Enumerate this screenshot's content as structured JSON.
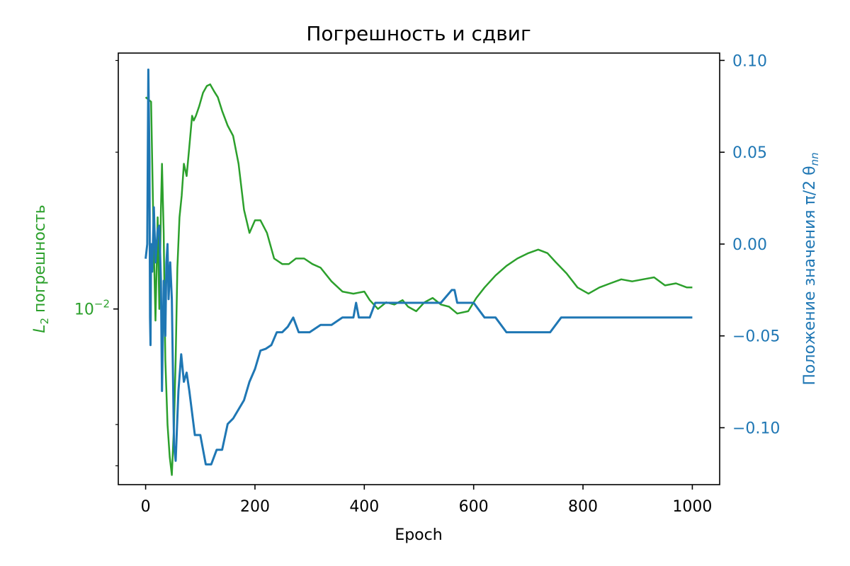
{
  "chart_data": {
    "type": "line",
    "title": "Погрешность и сдвиг",
    "xlabel": "Epoch",
    "xlim": [
      -50,
      1050
    ],
    "x_ticks": [
      0,
      200,
      400,
      600,
      800,
      1000
    ],
    "x_tick_labels": [
      "0",
      "200",
      "400",
      "600",
      "800",
      "1000"
    ],
    "grid": false,
    "left_axis": {
      "label_main": "L",
      "label_sub": "2",
      "label_rest": " погрешность",
      "scale": "log",
      "ylim": [
        0.0046,
        0.031
      ],
      "major_tick": 0.01,
      "major_tick_label": "10",
      "major_tick_exp": "−2",
      "minor_ticks": [
        0.005,
        0.006,
        0.02,
        0.03
      ],
      "color": "#2ca02c"
    },
    "right_axis": {
      "label_main": "Положение значения π/2 θ",
      "label_sub": "nn",
      "scale": "linear",
      "ylim": [
        -0.131,
        0.104
      ],
      "ticks": [
        0.1,
        0.05,
        0.0,
        -0.05,
        -0.1
      ],
      "tick_labels": [
        "0.10",
        "0.05",
        "0.00",
        "−0.05",
        "−0.10"
      ],
      "color": "#1f77b4"
    },
    "series": [
      {
        "axis": "left",
        "color": "#2ca02c",
        "x": [
          0,
          10,
          15,
          18,
          22,
          25,
          28,
          30,
          33,
          36,
          40,
          44,
          48,
          52,
          55,
          58,
          62,
          66,
          70,
          75,
          80,
          85,
          88,
          92,
          98,
          105,
          112,
          118,
          125,
          132,
          140,
          150,
          160,
          170,
          180,
          190,
          200,
          210,
          222,
          235,
          250,
          262,
          275,
          290,
          305,
          320,
          340,
          360,
          380,
          400,
          410,
          425,
          440,
          455,
          470,
          480,
          495,
          510,
          525,
          540,
          555,
          570,
          590,
          605,
          620,
          640,
          660,
          680,
          700,
          718,
          735,
          750,
          770,
          790,
          810,
          830,
          850,
          870,
          890,
          910,
          930,
          950,
          970,
          990,
          1000
        ],
        "y": [
          0.0255,
          0.025,
          0.013,
          0.0095,
          0.015,
          0.01,
          0.0155,
          0.019,
          0.014,
          0.008,
          0.006,
          0.0052,
          0.0048,
          0.006,
          0.008,
          0.012,
          0.015,
          0.0165,
          0.019,
          0.018,
          0.0205,
          0.0235,
          0.023,
          0.0235,
          0.0245,
          0.026,
          0.0268,
          0.027,
          0.0262,
          0.0255,
          0.024,
          0.0225,
          0.0215,
          0.019,
          0.0155,
          0.014,
          0.0148,
          0.0148,
          0.014,
          0.0125,
          0.0122,
          0.0122,
          0.0125,
          0.0125,
          0.0122,
          0.012,
          0.0113,
          0.0108,
          0.0107,
          0.0108,
          0.0104,
          0.01,
          0.0103,
          0.0102,
          0.0104,
          0.0101,
          0.0099,
          0.0103,
          0.0105,
          0.0102,
          0.0101,
          0.0098,
          0.0099,
          0.0105,
          0.011,
          0.0116,
          0.0121,
          0.0125,
          0.0128,
          0.013,
          0.0128,
          0.0123,
          0.0117,
          0.011,
          0.0107,
          0.011,
          0.0112,
          0.0114,
          0.0113,
          0.0114,
          0.0115,
          0.0111,
          0.0112,
          0.011,
          0.011
        ]
      },
      {
        "axis": "right",
        "color": "#1f77b4",
        "x": [
          0,
          3,
          5,
          6,
          7,
          8,
          9,
          10,
          12,
          15,
          18,
          22,
          25,
          28,
          30,
          31,
          33,
          36,
          38,
          40,
          42,
          45,
          48,
          52,
          55,
          60,
          65,
          70,
          75,
          80,
          90,
          100,
          110,
          120,
          130,
          140,
          150,
          160,
          170,
          180,
          190,
          200,
          210,
          220,
          230,
          240,
          250,
          260,
          270,
          280,
          300,
          320,
          340,
          360,
          380,
          385,
          390,
          400,
          410,
          420,
          450,
          480,
          500,
          520,
          540,
          560,
          565,
          570,
          580,
          600,
          620,
          640,
          660,
          680,
          700,
          720,
          740,
          760,
          780,
          800,
          850,
          900,
          950,
          1000
        ],
        "y": [
          -0.008,
          0.0,
          0.095,
          0.07,
          0.045,
          -0.04,
          -0.055,
          0.0,
          -0.015,
          0.02,
          -0.01,
          0.008,
          0.01,
          -0.02,
          -0.08,
          -0.06,
          -0.02,
          -0.05,
          -0.01,
          0.0,
          -0.03,
          -0.01,
          -0.03,
          -0.11,
          -0.118,
          -0.08,
          -0.06,
          -0.075,
          -0.07,
          -0.08,
          -0.104,
          -0.104,
          -0.12,
          -0.12,
          -0.112,
          -0.112,
          -0.098,
          -0.095,
          -0.09,
          -0.085,
          -0.075,
          -0.068,
          -0.058,
          -0.057,
          -0.055,
          -0.048,
          -0.048,
          -0.045,
          -0.04,
          -0.048,
          -0.048,
          -0.044,
          -0.044,
          -0.04,
          -0.04,
          -0.032,
          -0.04,
          -0.04,
          -0.04,
          -0.032,
          -0.032,
          -0.032,
          -0.032,
          -0.032,
          -0.032,
          -0.025,
          -0.025,
          -0.032,
          -0.032,
          -0.032,
          -0.04,
          -0.04,
          -0.048,
          -0.048,
          -0.048,
          -0.048,
          -0.048,
          -0.04,
          -0.04,
          -0.04,
          -0.04,
          -0.04,
          -0.04,
          -0.04
        ]
      }
    ]
  }
}
